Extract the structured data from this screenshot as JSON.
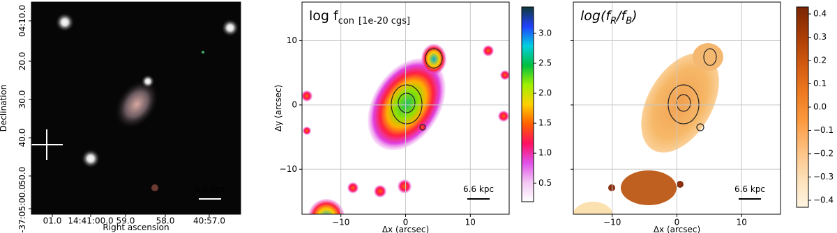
{
  "chart_data": [
    {
      "type": "image",
      "xlabel": "Right ascension",
      "ylabel": "Declination",
      "xtick_labels": [
        "01.0",
        "14:41:00.0",
        "59.0",
        "58.0",
        "40:57.0"
      ],
      "ytick_labels": [
        "04:10.0",
        "20.0",
        "30.0",
        "40.0",
        "50.0",
        "-37:05:00.0"
      ],
      "scale_bar": "6.6 kpc"
    },
    {
      "type": "image",
      "title_parts": [
        "log f",
        "con",
        "[1e-20 cgs]"
      ],
      "xlabel": "Δx (arcsec)",
      "ylabel": "Δy (arcsec)",
      "xlim": [
        -16,
        16
      ],
      "ylim": [
        -17,
        16
      ],
      "xticks": [
        {
          "value": -10,
          "label": "−10"
        },
        0,
        10
      ],
      "yticks": [
        {
          "value": -10,
          "label": "−10"
        },
        0,
        10
      ],
      "grid": true,
      "scale_bar": "6.6 kpc",
      "colorbar": {
        "lim": [
          0.19,
          3.44
        ],
        "ticks": [
          0.5,
          {
            "value": 1,
            "label": "1.0"
          },
          1.5,
          {
            "value": 2,
            "label": "2.0"
          },
          2.5,
          {
            "value": 3,
            "label": "3.0"
          }
        ],
        "colors": [
          "#ffffff",
          "#f4c6f4",
          "#e050e8",
          "#ff1060",
          "#ff6000",
          "#ffd000",
          "#a0f000",
          "#00c040",
          "#00d0e0",
          "#2040ff",
          "#103838"
        ]
      }
    },
    {
      "type": "image",
      "title_parts": [
        "log(f",
        "R",
        "/f",
        "B",
        ")"
      ],
      "xlabel": "Δx (arcsec)",
      "xlim": [
        -16,
        16
      ],
      "ylim": [
        -17,
        16
      ],
      "xticks": [
        {
          "value": -10,
          "label": "−10"
        },
        0,
        10
      ],
      "yticks": [
        -10,
        0,
        10
      ],
      "grid": true,
      "scale_bar": "6.6 kpc",
      "colorbar": {
        "lim": [
          -0.43,
          0.43
        ],
        "ticks": [
          {
            "value": -0.4,
            "label": "−0.4"
          },
          {
            "value": -0.3,
            "label": "−0.3"
          },
          {
            "value": -0.2,
            "label": "−0.2"
          },
          {
            "value": -0.1,
            "label": "−0.1"
          },
          {
            "value": 0,
            "label": "0.0"
          },
          0.1,
          0.2,
          0.3,
          0.4
        ],
        "colors": [
          "#fff5e0",
          "#fde0b8",
          "#fdc080",
          "#fb9a40",
          "#ee7a20",
          "#d25a10",
          "#a83c05",
          "#7a2604"
        ]
      }
    }
  ]
}
